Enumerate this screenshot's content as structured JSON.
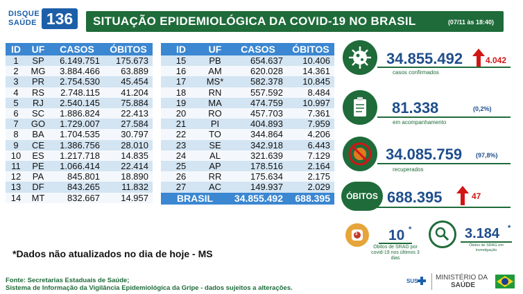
{
  "logo": {
    "line1": "DISQUE",
    "line2": "SAÚDE",
    "number": "136"
  },
  "header": {
    "title": "SITUAÇÃO EPIDEMIOLÓGICA DA COVID-19 NO BRASIL",
    "date": "(07/11 às 18:40)"
  },
  "columns": {
    "id": "ID",
    "uf": "UF",
    "casos": "CASOS",
    "obitos": "ÓBITOS"
  },
  "left_rows": [
    {
      "id": "1",
      "uf": "SP",
      "casos": "6.149.751",
      "obitos": "175.673"
    },
    {
      "id": "2",
      "uf": "MG",
      "casos": "3.884.466",
      "obitos": "63.889"
    },
    {
      "id": "3",
      "uf": "PR",
      "casos": "2.754.530",
      "obitos": "45.454"
    },
    {
      "id": "4",
      "uf": "RS",
      "casos": "2.748.115",
      "obitos": "41.204"
    },
    {
      "id": "5",
      "uf": "RJ",
      "casos": "2.540.145",
      "obitos": "75.884"
    },
    {
      "id": "6",
      "uf": "SC",
      "casos": "1.886.824",
      "obitos": "22.413"
    },
    {
      "id": "7",
      "uf": "GO",
      "casos": "1.729.007",
      "obitos": "27.584"
    },
    {
      "id": "8",
      "uf": "BA",
      "casos": "1.704.535",
      "obitos": "30.797"
    },
    {
      "id": "9",
      "uf": "CE",
      "casos": "1.386.756",
      "obitos": "28.010"
    },
    {
      "id": "10",
      "uf": "ES",
      "casos": "1.217.718",
      "obitos": "14.835"
    },
    {
      "id": "11",
      "uf": "PE",
      "casos": "1.066.414",
      "obitos": "22.414"
    },
    {
      "id": "12",
      "uf": "PA",
      "casos": "845.801",
      "obitos": "18.890"
    },
    {
      "id": "13",
      "uf": "DF",
      "casos": "843.265",
      "obitos": "11.832"
    },
    {
      "id": "14",
      "uf": "MT",
      "casos": "832.667",
      "obitos": "14.957"
    }
  ],
  "right_rows": [
    {
      "id": "15",
      "uf": "PB",
      "casos": "654.637",
      "obitos": "10.406"
    },
    {
      "id": "16",
      "uf": "AM",
      "casos": "620.028",
      "obitos": "14.361"
    },
    {
      "id": "17",
      "uf": "MS*",
      "casos": "582.378",
      "obitos": "10.845"
    },
    {
      "id": "18",
      "uf": "RN",
      "casos": "557.592",
      "obitos": "8.484"
    },
    {
      "id": "19",
      "uf": "MA",
      "casos": "474.759",
      "obitos": "10.997"
    },
    {
      "id": "20",
      "uf": "RO",
      "casos": "457.703",
      "obitos": "7.361"
    },
    {
      "id": "21",
      "uf": "PI",
      "casos": "404.893",
      "obitos": "7.959"
    },
    {
      "id": "22",
      "uf": "TO",
      "casos": "344.864",
      "obitos": "4.206"
    },
    {
      "id": "23",
      "uf": "SE",
      "casos": "342.918",
      "obitos": "6.443"
    },
    {
      "id": "24",
      "uf": "AL",
      "casos": "321.639",
      "obitos": "7.129"
    },
    {
      "id": "25",
      "uf": "AP",
      "casos": "178.516",
      "obitos": "2.164"
    },
    {
      "id": "26",
      "uf": "RR",
      "casos": "175.634",
      "obitos": "2.175"
    },
    {
      "id": "27",
      "uf": "AC",
      "casos": "149.937",
      "obitos": "2.029"
    }
  ],
  "total": {
    "label": "BRASIL",
    "casos": "34.855.492",
    "obitos": "688.395"
  },
  "note": "*Dados não atualizados no dia de hoje - MS",
  "footer": {
    "line1": "Fonte: Secretarias Estaduais de Saúde;",
    "line2": "Sistema de Informação da Vigilância Epidemiológica da Gripe - dados sujeitos a alterações."
  },
  "stats": {
    "confirmados": {
      "value": "34.855.492",
      "increase": "4.042",
      "label": "casos confirmados"
    },
    "acompanhamento": {
      "value": "81.338",
      "pct": "(0,2%)",
      "label": "em acompanhamento"
    },
    "recuperados": {
      "value": "34.085.759",
      "pct": "(97,8%)",
      "label": "recuperados"
    },
    "obitos": {
      "badge": "ÓBITOS",
      "value": "688.395",
      "increase": "47"
    },
    "srag": {
      "value": "10",
      "mark": "*",
      "label": "Óbitos de SRAG por covid-19 nos últimos 3 dias",
      "badge": "3"
    },
    "investigacao": {
      "value": "3.184",
      "mark": "*",
      "label": "Óbitos de SRAG em investigação"
    }
  },
  "ministry": {
    "sus": "SUS",
    "line1": "MINISTÉRIO DA",
    "line2": "SAÚDE"
  },
  "colors": {
    "green": "#1f6b3a",
    "blue": "#3b87d1",
    "navy": "#1f4e8c",
    "red": "#d11616"
  },
  "icons": [
    "virus-icon",
    "clipboard-icon",
    "no-virus-icon",
    "hospital-bed-icon",
    "magnifier-icon",
    "brazil-flag-icon"
  ]
}
